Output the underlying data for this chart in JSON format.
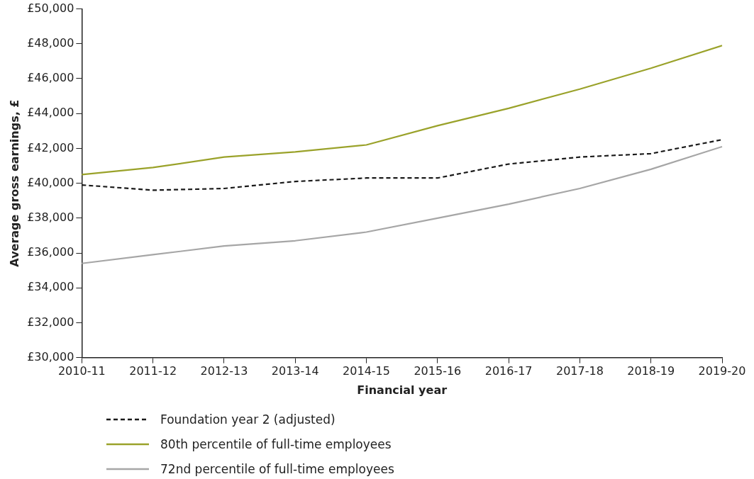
{
  "chart_data": {
    "type": "line",
    "xlabel": "Financial year",
    "ylabel": "Average gross earnings, £",
    "categories": [
      "2010-11",
      "2011-12",
      "2012-13",
      "2013-14",
      "2014-15",
      "2015-16",
      "2016-17",
      "2017-18",
      "2018-19",
      "2019-20"
    ],
    "series": [
      {
        "name": "Foundation year 2 (adjusted)",
        "color": "#1a1a1a",
        "line_style": "dashed",
        "values": [
          39900,
          39600,
          39700,
          40100,
          40300,
          40300,
          41100,
          41500,
          41700,
          42500
        ]
      },
      {
        "name": "80th percentile of full-time employees",
        "color": "#9aa22a",
        "line_style": "solid",
        "values": [
          40500,
          40900,
          41500,
          41800,
          42200,
          43300,
          44300,
          45400,
          46600,
          47900
        ]
      },
      {
        "name": "72nd percentile of full-time employees",
        "color": "#a6a6a6",
        "line_style": "solid",
        "values": [
          35400,
          35900,
          36400,
          36700,
          37200,
          38000,
          38800,
          39700,
          40800,
          42100
        ]
      }
    ],
    "ylim": [
      30000,
      50000
    ],
    "yticks": [
      {
        "value": 30000,
        "label": "£30,000"
      },
      {
        "value": 32000,
        "label": "£32,000"
      },
      {
        "value": 34000,
        "label": "£34,000"
      },
      {
        "value": 36000,
        "label": "£36,000"
      },
      {
        "value": 38000,
        "label": "£38,000"
      },
      {
        "value": 40000,
        "label": "£40,000"
      },
      {
        "value": 42000,
        "label": "£42,000"
      },
      {
        "value": 44000,
        "label": "£44,000"
      },
      {
        "value": 46000,
        "label": "£46,000"
      },
      {
        "value": 48000,
        "label": "£48,000"
      },
      {
        "value": 50000,
        "label": "£50,000"
      }
    ],
    "grid": false,
    "legend": "bottom",
    "marker": "none"
  }
}
